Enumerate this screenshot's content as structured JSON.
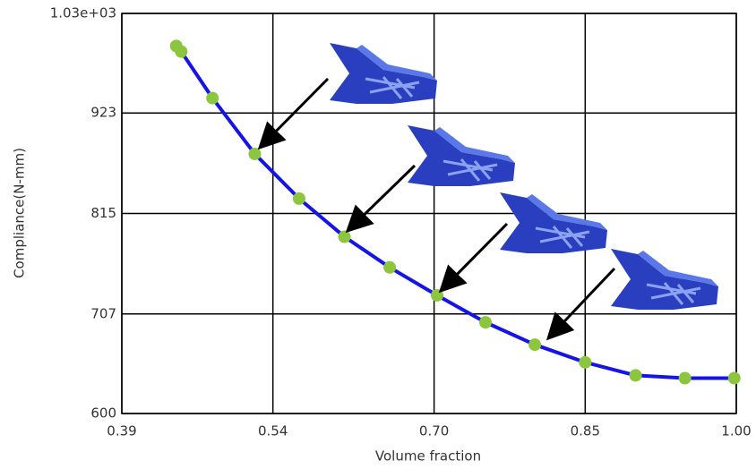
{
  "chart_data": {
    "type": "line",
    "x": [
      0.444,
      0.449,
      0.48,
      0.522,
      0.566,
      0.611,
      0.656,
      0.703,
      0.751,
      0.8,
      0.85,
      0.9,
      0.949,
      0.998
    ],
    "values": [
      995,
      989,
      939,
      879,
      831,
      790,
      757,
      727,
      698,
      674,
      655,
      641,
      638,
      638
    ],
    "color": "#1414e6",
    "marker_color": "#8cc63f",
    "xlabel": "Volume fraction",
    "ylabel": "Compliance(N-mm)",
    "xlim": [
      0.39,
      1
    ],
    "ylim": [
      600,
      1030
    ],
    "xticks": [
      0.39,
      0.54,
      {
        "value": 0.7,
        "label": "0.70"
      },
      0.85,
      {
        "value": 1,
        "label": "1.00"
      }
    ],
    "yticks": [
      600,
      707,
      815,
      923,
      {
        "value": 1030,
        "label": "1.03e+03"
      }
    ],
    "grid": true
  }
}
